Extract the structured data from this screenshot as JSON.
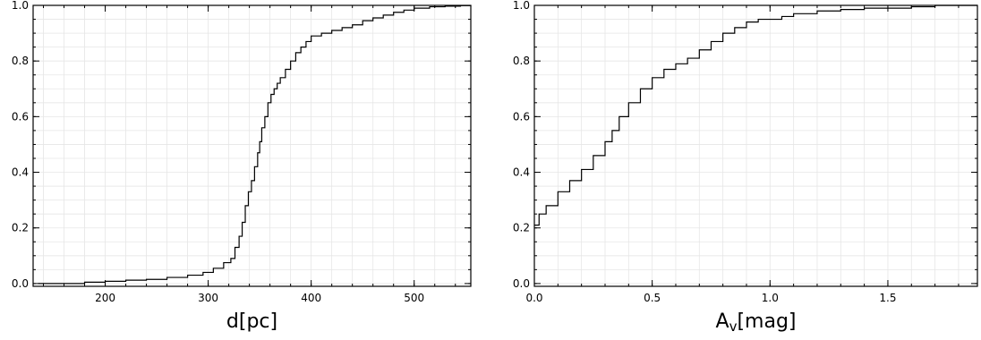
{
  "chart_data": [
    {
      "type": "line",
      "step": true,
      "xlabel": "d[pc]",
      "ylabel": "",
      "title": "",
      "xlim": [
        130,
        555
      ],
      "ylim": [
        -0.01,
        1.0
      ],
      "xticks": [
        "200",
        "300",
        "400",
        "500"
      ],
      "yticks": [
        "0.0",
        "0.2",
        "0.4",
        "0.6",
        "0.8",
        "1.0"
      ],
      "grid": true,
      "series": [
        {
          "x": [
            135,
            160,
            180,
            200,
            220,
            240,
            260,
            280,
            295,
            305,
            315,
            322,
            326,
            330,
            333,
            336,
            339,
            342,
            345,
            348,
            350,
            352,
            355,
            358,
            361,
            364,
            367,
            370,
            375,
            380,
            385,
            390,
            395,
            400,
            410,
            420,
            430,
            440,
            450,
            460,
            470,
            480,
            490,
            500,
            515,
            530,
            545,
            555
          ],
          "y": [
            0.0,
            0.0,
            0.005,
            0.008,
            0.012,
            0.015,
            0.022,
            0.03,
            0.04,
            0.055,
            0.075,
            0.09,
            0.13,
            0.17,
            0.22,
            0.28,
            0.33,
            0.37,
            0.42,
            0.47,
            0.51,
            0.56,
            0.6,
            0.65,
            0.68,
            0.7,
            0.72,
            0.74,
            0.77,
            0.8,
            0.83,
            0.85,
            0.87,
            0.89,
            0.9,
            0.91,
            0.92,
            0.93,
            0.945,
            0.955,
            0.965,
            0.975,
            0.983,
            0.99,
            0.995,
            0.997,
            0.999,
            1.0
          ]
        }
      ]
    },
    {
      "type": "line",
      "step": true,
      "xlabel": "Av[mag]",
      "xlabel_main": "A",
      "xlabel_sub": "v",
      "xlabel_unit": "[mag]",
      "ylabel": "",
      "title": "",
      "xlim": [
        0.0,
        1.88
      ],
      "ylim": [
        -0.01,
        1.0
      ],
      "xticks": [
        "0.0",
        "0.5",
        "1.0",
        "1.5"
      ],
      "yticks": [
        "0.0",
        "0.2",
        "0.4",
        "0.6",
        "0.8",
        "1.0"
      ],
      "grid": true,
      "series": [
        {
          "x": [
            0.0,
            0.02,
            0.05,
            0.1,
            0.15,
            0.2,
            0.25,
            0.3,
            0.33,
            0.36,
            0.4,
            0.45,
            0.5,
            0.55,
            0.6,
            0.65,
            0.7,
            0.75,
            0.8,
            0.85,
            0.9,
            0.95,
            1.0,
            1.05,
            1.1,
            1.2,
            1.3,
            1.4,
            1.5,
            1.6,
            1.7,
            1.8,
            1.88
          ],
          "y": [
            0.21,
            0.25,
            0.28,
            0.33,
            0.37,
            0.41,
            0.46,
            0.51,
            0.55,
            0.6,
            0.65,
            0.7,
            0.74,
            0.77,
            0.79,
            0.81,
            0.84,
            0.87,
            0.9,
            0.92,
            0.94,
            0.95,
            0.95,
            0.96,
            0.97,
            0.98,
            0.985,
            0.99,
            0.99,
            0.995,
            1.0,
            1.0,
            1.0
          ]
        }
      ]
    }
  ]
}
